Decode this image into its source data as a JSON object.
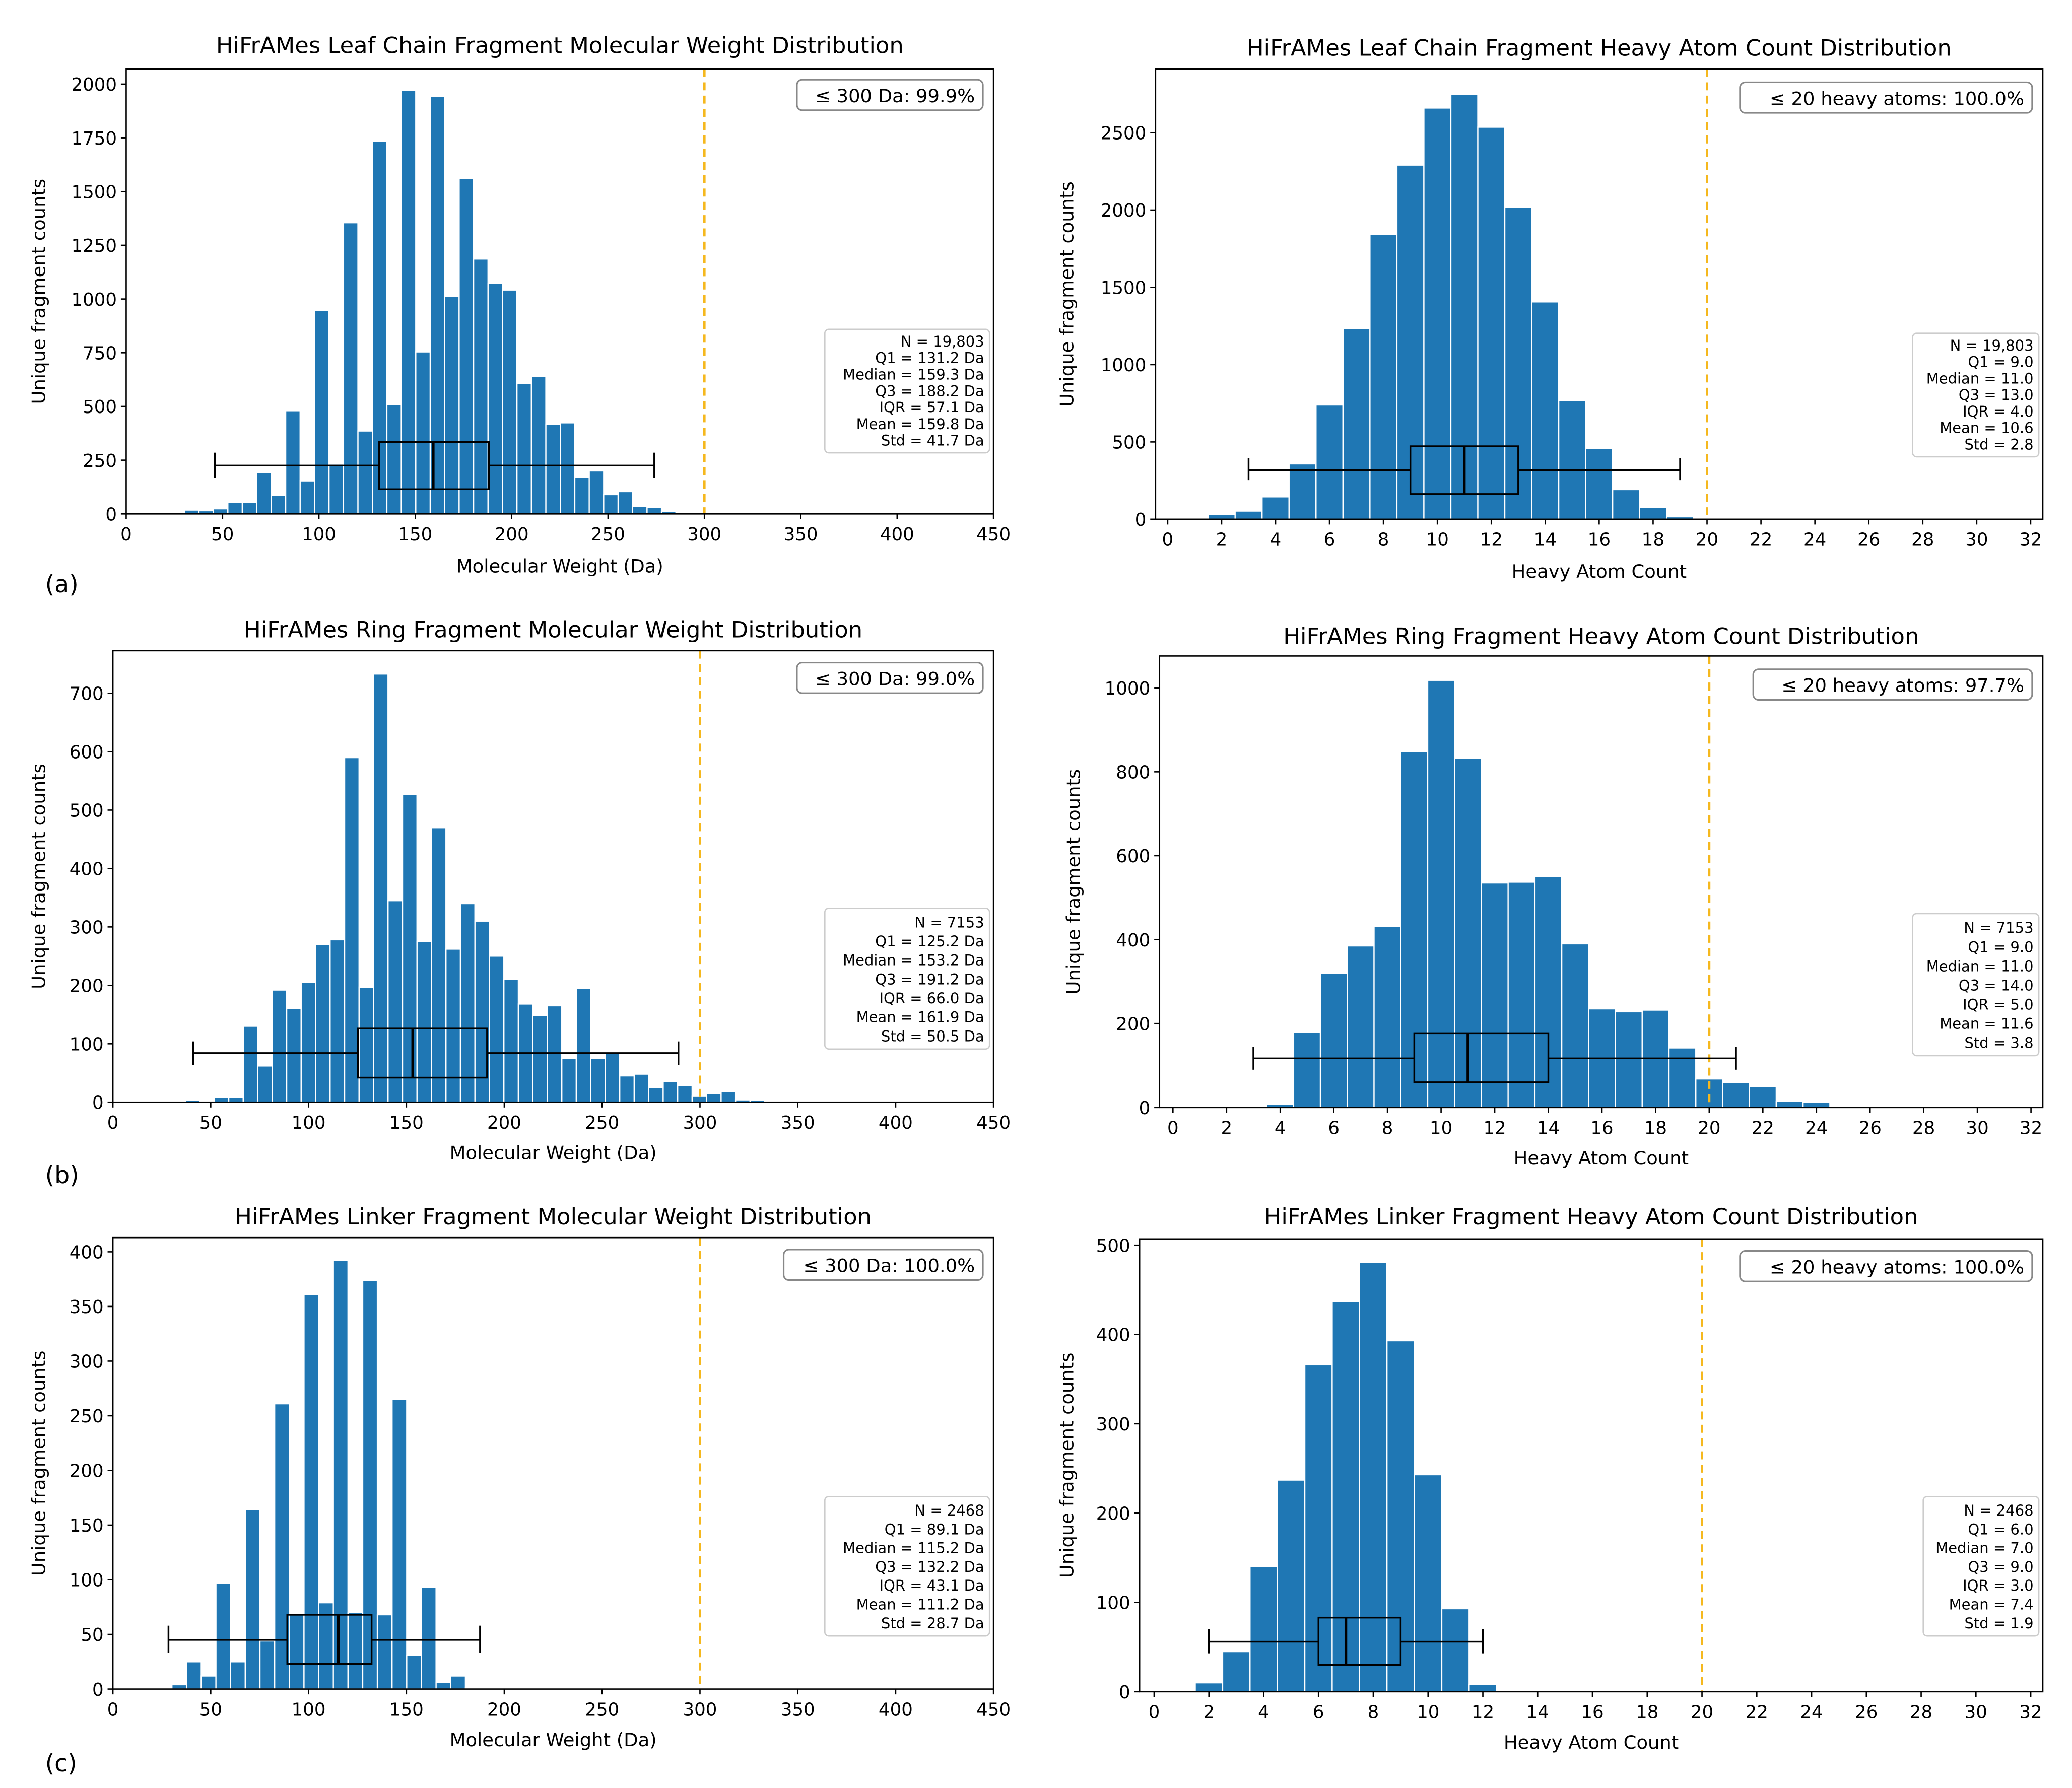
{
  "figure": {
    "panel_labels": [
      "(a)",
      "(b)",
      "(c)"
    ],
    "colors": {
      "bar": "#1f77b4",
      "threshold": "#f5b81e",
      "box": "#000000"
    }
  },
  "chart_data": [
    {
      "type": "bar",
      "title": "HiFrAMes Leaf Chain Fragment Molecular Weight Distribution",
      "xlabel": "Molecular Weight (Da)",
      "ylabel": "Unique fragment counts",
      "xlim": [
        0,
        450
      ],
      "ylim": [
        0,
        2070
      ],
      "xticks": [
        0,
        50,
        100,
        150,
        200,
        250,
        300,
        350,
        400,
        450
      ],
      "yticks": [
        0,
        250,
        500,
        750,
        1000,
        1250,
        1500,
        1750,
        2000
      ],
      "bin_start": 34,
      "bin_width": 7.5,
      "values": [
        18,
        15,
        24,
        55,
        53,
        192,
        86,
        478,
        154,
        946,
        232,
        1355,
        386,
        1735,
        509,
        1970,
        754,
        1943,
        1013,
        1560,
        1186,
        1073,
        1042,
        608,
        639,
        418,
        424,
        169,
        200,
        90,
        104,
        35,
        31,
        12,
        4
      ],
      "threshold": 300,
      "threshold_label": "≤ 300 Da: 99.9%",
      "boxplot": {
        "whisker_low": 46,
        "q1": 131.2,
        "median": 159.3,
        "q3": 188.2,
        "whisker_high": 274,
        "y_center": 225,
        "box_y": [
          115,
          335
        ],
        "cap_y": [
          165,
          285
        ]
      },
      "stats": [
        "N = 19,803",
        "Q1 = 131.2 Da",
        "Median = 159.3 Da",
        "Q3 = 188.2 Da",
        "IQR = 57.1 Da",
        "Mean = 159.8 Da",
        "Std = 41.7 Da"
      ]
    },
    {
      "type": "bar",
      "title": "HiFrAMes Leaf Chain Fragment Heavy Atom Count Distribution",
      "xlabel": "Heavy Atom Count",
      "ylabel": "Unique fragment counts",
      "xlim": [
        -0.45,
        32.45
      ],
      "ylim": [
        0,
        2912
      ],
      "xticks": [
        0,
        2,
        4,
        6,
        8,
        10,
        12,
        14,
        16,
        18,
        20,
        22,
        24,
        26,
        28,
        30,
        32
      ],
      "yticks": [
        0,
        500,
        1000,
        1500,
        2000,
        2500
      ],
      "bin_start": 2,
      "bin_width": 1,
      "values": [
        30,
        53,
        145,
        358,
        739,
        1234,
        1843,
        2291,
        2660,
        2750,
        2536,
        2020,
        1406,
        768,
        459,
        192,
        77,
        16
      ],
      "threshold": 20,
      "threshold_label": "≤ 20 heavy atoms: 100.0%",
      "boxplot": {
        "whisker_low": 3,
        "q1": 9,
        "median": 11,
        "q3": 13,
        "whisker_high": 19,
        "y_center": 318,
        "box_y": [
          163,
          472
        ],
        "cap_y": [
          250,
          395
        ]
      },
      "stats": [
        "N = 19,803",
        "Q1 = 9.0",
        "Median = 11.0",
        "Q3 = 13.0",
        "IQR = 4.0",
        "Mean = 10.6",
        "Std = 2.8"
      ]
    },
    {
      "type": "bar",
      "title": "HiFrAMes Ring Fragment Molecular Weight Distribution",
      "xlabel": "Molecular Weight (Da)",
      "ylabel": "Unique fragment counts",
      "xlim": [
        0,
        450
      ],
      "ylim": [
        0,
        773
      ],
      "xticks": [
        0,
        50,
        100,
        150,
        200,
        250,
        300,
        350,
        400,
        450
      ],
      "yticks": [
        0,
        100,
        200,
        300,
        400,
        500,
        600,
        700
      ],
      "bin_start": 40.7,
      "bin_width": 7.4,
      "values": [
        3,
        2,
        8,
        8,
        130,
        62,
        192,
        160,
        205,
        270,
        278,
        590,
        197,
        733,
        345,
        527,
        275,
        470,
        262,
        340,
        310,
        250,
        210,
        168,
        148,
        165,
        75,
        195,
        75,
        85,
        45,
        48,
        25,
        35,
        28,
        10,
        15,
        18,
        4,
        3
      ],
      "threshold": 300,
      "threshold_label": "≤ 300 Da: 99.0%",
      "boxplot": {
        "whisker_low": 41,
        "q1": 125.2,
        "median": 153.2,
        "q3": 191.2,
        "whisker_high": 289,
        "y_center": 84,
        "box_y": [
          42,
          126
        ],
        "cap_y": [
          64,
          104
        ]
      },
      "stats": [
        "N = 7153",
        "Q1 = 125.2 Da",
        "Median = 153.2 Da",
        "Q3 = 191.2 Da",
        "IQR = 66.0 Da",
        "Mean = 161.9 Da",
        "Std = 50.5 Da"
      ]
    },
    {
      "type": "bar",
      "title": "HiFrAMes Ring Fragment Heavy Atom Count Distribution",
      "xlabel": "Heavy Atom Count",
      "ylabel": "Unique fragment counts",
      "xlim": [
        -0.5,
        32.44
      ],
      "ylim": [
        0,
        1076
      ],
      "xticks": [
        0,
        2,
        4,
        6,
        8,
        10,
        12,
        14,
        16,
        18,
        20,
        22,
        24,
        26,
        28,
        30,
        32
      ],
      "yticks": [
        0,
        200,
        400,
        600,
        800,
        1000
      ],
      "bin_start": 3,
      "bin_width": 1,
      "values": [
        3,
        8,
        180,
        320,
        385,
        432,
        848,
        1018,
        832,
        535,
        537,
        550,
        390,
        235,
        228,
        232,
        142,
        68,
        60,
        50,
        15,
        12,
        0,
        3
      ],
      "threshold": 20,
      "threshold_label": "≤ 20 heavy atoms: 97.7%",
      "boxplot": {
        "whisker_low": 3,
        "q1": 9,
        "median": 11,
        "q3": 14,
        "whisker_high": 21,
        "y_center": 117,
        "box_y": [
          60,
          177
        ],
        "cap_y": [
          90,
          145
        ]
      },
      "stats": [
        "N = 7153",
        "Q1 = 9.0",
        "Median = 11.0",
        "Q3 = 14.0",
        "IQR = 5.0",
        "Mean = 11.6",
        "Std = 3.8"
      ]
    },
    {
      "type": "bar",
      "title": "HiFrAMes Linker Fragment Molecular Weight Distribution",
      "xlabel": "Molecular Weight (Da)",
      "ylabel": "Unique fragment counts",
      "xlim": [
        0,
        450
      ],
      "ylim": [
        0,
        413
      ],
      "xticks": [
        0,
        50,
        100,
        150,
        200,
        250,
        300,
        350,
        400,
        450
      ],
      "yticks": [
        0,
        50,
        100,
        150,
        200,
        250,
        300,
        350,
        400
      ],
      "bin_start": 26.4,
      "bin_width": 7.5,
      "values": [
        1,
        4,
        25,
        12,
        97,
        25,
        164,
        44,
        261,
        68,
        361,
        79,
        392,
        70,
        374,
        68,
        265,
        31,
        93,
        6,
        12,
        1
      ],
      "threshold": 300,
      "threshold_label": "≤ 300 Da: 100.0%",
      "boxplot": {
        "whisker_low": 28.4,
        "q1": 89.1,
        "median": 115.2,
        "q3": 132.2,
        "whisker_high": 187.6,
        "y_center": 45,
        "box_y": [
          23,
          68
        ],
        "cap_y": [
          33,
          58
        ]
      },
      "stats": [
        "N = 2468",
        "Q1 = 89.1 Da",
        "Median = 115.2 Da",
        "Q3 = 132.2 Da",
        "IQR = 43.1 Da",
        "Mean = 111.2 Da",
        "Std = 28.7 Da"
      ]
    },
    {
      "type": "bar",
      "title": "HiFrAMes Linker Fragment Heavy Atom Count Distribution",
      "xlabel": "Heavy Atom Count",
      "ylabel": "Unique fragment counts",
      "xlim": [
        -0.53,
        32.44
      ],
      "ylim": [
        0,
        507
      ],
      "xticks": [
        0,
        2,
        4,
        6,
        8,
        10,
        12,
        14,
        16,
        18,
        20,
        22,
        24,
        26,
        28,
        30,
        32
      ],
      "yticks": [
        0,
        100,
        200,
        300,
        400,
        500
      ],
      "bin_start": 2,
      "bin_width": 1,
      "values": [
        10,
        45,
        140,
        237,
        366,
        437,
        481,
        393,
        243,
        93,
        8
      ],
      "threshold": 20,
      "threshold_label": "≤ 20 heavy atoms: 100.0%",
      "boxplot": {
        "whisker_low": 2,
        "q1": 6,
        "median": 7,
        "q3": 9,
        "whisker_high": 12,
        "y_center": 56,
        "box_y": [
          30,
          83
        ],
        "cap_y": [
          43,
          70
        ]
      },
      "stats": [
        "N = 2468",
        "Q1 = 6.0",
        "Median = 7.0",
        "Q3 = 9.0",
        "IQR = 3.0",
        "Mean = 7.4",
        "Std = 1.9"
      ]
    }
  ]
}
